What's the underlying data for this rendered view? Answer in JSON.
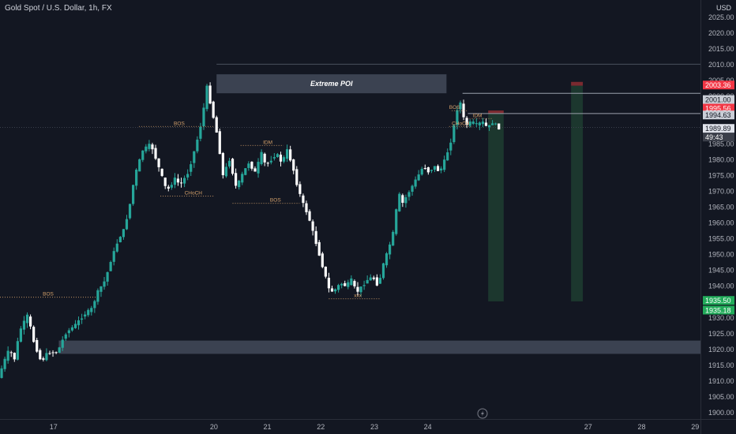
{
  "header": {
    "title": "Gold Spot / U.S. Dollar, 1h, FX",
    "currency": "USD"
  },
  "colors": {
    "background": "#131722",
    "up": "#26a69a",
    "down": "#ffffff",
    "zone": "#5d6678",
    "target_zone": "#1e3b30",
    "axis_text": "#b2b5be",
    "structure_label": "#d6a26b",
    "price_label": "#c9cdd6",
    "red_badge": "#f23645",
    "green_badge": "#22ab5a"
  },
  "chart_data": {
    "type": "candlestick",
    "title": "Gold Spot / U.S. Dollar, 1h, FX",
    "ylim": [
      1898,
      2027
    ],
    "y_ticks": [
      1900,
      1905,
      1910,
      1915,
      1920,
      1925,
      1930,
      1935,
      1940,
      1945,
      1950,
      1955,
      1960,
      1965,
      1970,
      1975,
      1980,
      1985,
      1990,
      1995,
      2000,
      2005,
      2010,
      2015,
      2020,
      2025
    ],
    "x_range": [
      16,
      29.1
    ],
    "x_ticks": [
      {
        "x": 17,
        "label": "17"
      },
      {
        "x": 20,
        "label": "20"
      },
      {
        "x": 21,
        "label": "21"
      },
      {
        "x": 22,
        "label": "22"
      },
      {
        "x": 23,
        "label": "23"
      },
      {
        "x": 24,
        "label": "24"
      },
      {
        "x": 27,
        "label": "27"
      },
      {
        "x": 28,
        "label": "28"
      },
      {
        "x": 29,
        "label": "29"
      }
    ],
    "path": [
      {
        "x": 16.0,
        "y": 1911
      },
      {
        "x": 16.1,
        "y": 1916
      },
      {
        "x": 16.2,
        "y": 1920
      },
      {
        "x": 16.3,
        "y": 1917
      },
      {
        "x": 16.4,
        "y": 1926
      },
      {
        "x": 16.55,
        "y": 1931
      },
      {
        "x": 16.65,
        "y": 1923
      },
      {
        "x": 16.8,
        "y": 1916
      },
      {
        "x": 16.92,
        "y": 1919
      },
      {
        "x": 17.1,
        "y": 1919
      },
      {
        "x": 17.25,
        "y": 1925
      },
      {
        "x": 17.45,
        "y": 1928
      },
      {
        "x": 17.6,
        "y": 1931
      },
      {
        "x": 17.75,
        "y": 1933
      },
      {
        "x": 17.85,
        "y": 1938
      },
      {
        "x": 18.0,
        "y": 1942
      },
      {
        "x": 18.1,
        "y": 1948
      },
      {
        "x": 18.25,
        "y": 1955
      },
      {
        "x": 18.35,
        "y": 1958
      },
      {
        "x": 18.45,
        "y": 1965
      },
      {
        "x": 18.55,
        "y": 1975
      },
      {
        "x": 18.7,
        "y": 1983
      },
      {
        "x": 18.85,
        "y": 1985
      },
      {
        "x": 18.95,
        "y": 1980
      },
      {
        "x": 19.05,
        "y": 1975
      },
      {
        "x": 19.15,
        "y": 1970
      },
      {
        "x": 19.3,
        "y": 1974
      },
      {
        "x": 19.4,
        "y": 1972
      },
      {
        "x": 19.55,
        "y": 1976
      },
      {
        "x": 19.7,
        "y": 1985
      },
      {
        "x": 19.8,
        "y": 1992
      },
      {
        "x": 19.9,
        "y": 2003
      },
      {
        "x": 20.0,
        "y": 1995
      },
      {
        "x": 20.1,
        "y": 1987
      },
      {
        "x": 20.2,
        "y": 1975
      },
      {
        "x": 20.32,
        "y": 1980
      },
      {
        "x": 20.45,
        "y": 1971
      },
      {
        "x": 20.55,
        "y": 1975
      },
      {
        "x": 20.68,
        "y": 1979
      },
      {
        "x": 20.8,
        "y": 1976
      },
      {
        "x": 20.92,
        "y": 1982
      },
      {
        "x": 21.0,
        "y": 1978
      },
      {
        "x": 21.1,
        "y": 1980
      },
      {
        "x": 21.2,
        "y": 1982
      },
      {
        "x": 21.3,
        "y": 1979
      },
      {
        "x": 21.4,
        "y": 1983
      },
      {
        "x": 21.5,
        "y": 1978
      },
      {
        "x": 21.6,
        "y": 1971
      },
      {
        "x": 21.7,
        "y": 1966
      },
      {
        "x": 21.8,
        "y": 1962
      },
      {
        "x": 21.9,
        "y": 1956
      },
      {
        "x": 22.0,
        "y": 1950
      },
      {
        "x": 22.1,
        "y": 1944
      },
      {
        "x": 22.2,
        "y": 1938
      },
      {
        "x": 22.3,
        "y": 1939
      },
      {
        "x": 22.4,
        "y": 1941
      },
      {
        "x": 22.5,
        "y": 1940
      },
      {
        "x": 22.6,
        "y": 1942
      },
      {
        "x": 22.7,
        "y": 1938
      },
      {
        "x": 22.8,
        "y": 1940
      },
      {
        "x": 22.9,
        "y": 1942
      },
      {
        "x": 23.0,
        "y": 1943
      },
      {
        "x": 23.1,
        "y": 1940
      },
      {
        "x": 23.2,
        "y": 1947
      },
      {
        "x": 23.3,
        "y": 1952
      },
      {
        "x": 23.4,
        "y": 1958
      },
      {
        "x": 23.48,
        "y": 1970
      },
      {
        "x": 23.55,
        "y": 1966
      },
      {
        "x": 23.65,
        "y": 1969
      },
      {
        "x": 23.75,
        "y": 1972
      },
      {
        "x": 23.85,
        "y": 1975
      },
      {
        "x": 23.95,
        "y": 1978
      },
      {
        "x": 24.05,
        "y": 1976
      },
      {
        "x": 24.15,
        "y": 1978
      },
      {
        "x": 24.25,
        "y": 1976
      },
      {
        "x": 24.35,
        "y": 1980
      },
      {
        "x": 24.45,
        "y": 1985
      },
      {
        "x": 24.55,
        "y": 1993
      },
      {
        "x": 24.62,
        "y": 2000
      },
      {
        "x": 24.68,
        "y": 1994
      },
      {
        "x": 24.75,
        "y": 1991
      },
      {
        "x": 24.85,
        "y": 1992
      },
      {
        "x": 24.95,
        "y": 1991
      },
      {
        "x": 25.05,
        "y": 1992
      },
      {
        "x": 25.15,
        "y": 1990
      },
      {
        "x": 25.25,
        "y": 1992
      },
      {
        "x": 25.35,
        "y": 1990
      }
    ],
    "current_price": 1989.89,
    "countdown": "49:43"
  },
  "zones": [
    {
      "label": "Extreme POI",
      "x0": 20.05,
      "x1": 24.35,
      "y0": 2001,
      "y1": 2007
    },
    {
      "label": "",
      "x0": 17.1,
      "x1": 29.1,
      "y0": 1918.6,
      "y1": 1922.8
    }
  ],
  "levels": [
    {
      "price": 2010.2,
      "x0": 20.05,
      "x1": 29.1,
      "color": "#4a4f5c"
    },
    {
      "price": 1990.2,
      "x0": 16.0,
      "x1": 29.1,
      "color": "#3a3f4c",
      "dash": true
    },
    {
      "price": 2001.0,
      "x0": 24.65,
      "x1": 29.1,
      "color": "#9aa0ab"
    },
    {
      "price": 1994.6,
      "x0": 24.75,
      "x1": 29.1,
      "color": "#9aa0ab"
    }
  ],
  "structure": [
    {
      "label": "BOS",
      "price": 1936.5,
      "x0": 16.0,
      "x1": 17.8,
      "text_x": 16.8
    },
    {
      "label": "BOS",
      "price": 1990.5,
      "x0": 18.6,
      "x1": 20.0,
      "text_x": 19.25
    },
    {
      "label": "IDM",
      "price": 1984.5,
      "x0": 20.5,
      "x1": 21.3,
      "text_x": 20.92
    },
    {
      "label": "CHoCH",
      "price": 1968.5,
      "x0": 19.0,
      "x1": 20.0,
      "text_x": 19.45
    },
    {
      "label": "BOS",
      "price": 1966.2,
      "x0": 20.35,
      "x1": 21.6,
      "text_x": 21.05
    },
    {
      "label": "xxx",
      "price": 1936.0,
      "x0": 22.15,
      "x1": 23.1,
      "text_x": 22.62
    },
    {
      "label": "BOS",
      "price": 1995.5,
      "x0": 24.45,
      "x1": 24.75,
      "text_x": 24.4
    },
    {
      "label": "IDM",
      "price": 1993.0,
      "x0": 24.78,
      "x1": 25.2,
      "text_x": 24.84
    },
    {
      "label": "CHoCH",
      "price": 1990.5,
      "x0": 24.4,
      "x1": 24.85,
      "text_x": 24.45
    }
  ],
  "target_boxes": [
    {
      "x0": 25.13,
      "x1": 25.42,
      "y_top": 1994.6,
      "y_bot": 1935.2
    },
    {
      "x0": 26.68,
      "x1": 26.9,
      "y_top": 2003.4,
      "y_bot": 1935.2
    }
  ],
  "price_badges": [
    {
      "price": 2003.36,
      "text": "2003.36",
      "style": "red"
    },
    {
      "price": 2001.0,
      "text": "2001.00",
      "style": "grey"
    },
    {
      "price": 1995.56,
      "text": "1995.56",
      "style": "red"
    },
    {
      "price": 1994.63,
      "text": "1994.63",
      "style": "grey"
    },
    {
      "price": 1989.89,
      "text": "1989.89",
      "style": "current"
    },
    {
      "price": 1935.5,
      "text": "1935.50",
      "style": "green"
    },
    {
      "price": 1935.18,
      "text": "1935.18",
      "style": "green"
    }
  ],
  "icons": {
    "replay": "lightning-icon"
  }
}
